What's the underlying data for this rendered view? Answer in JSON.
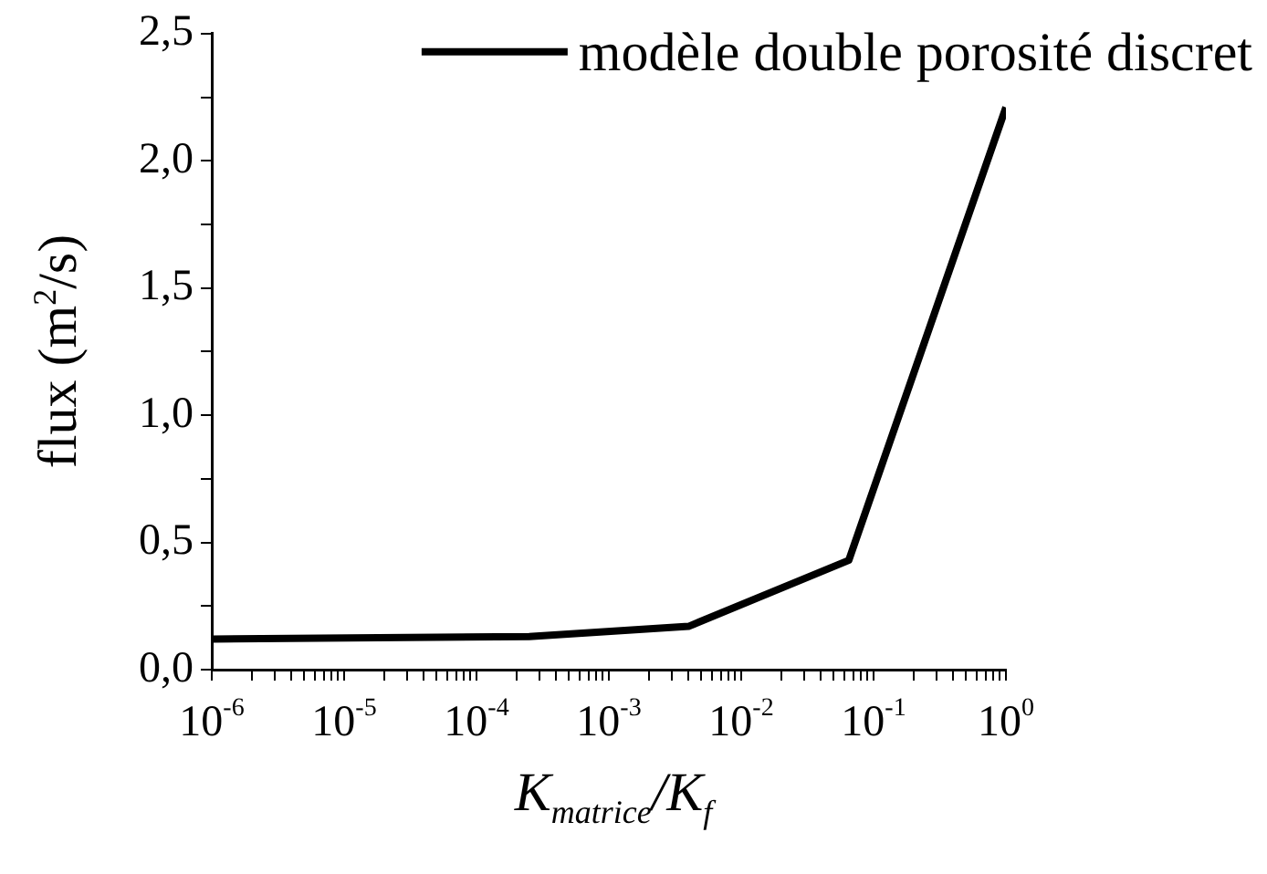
{
  "chart_data": {
    "type": "line",
    "xlabel": "K$_{matrice}$/K$_{f}$",
    "ylabel": "flux (m$^{2}$/s)",
    "log": "x",
    "legend": "top right",
    "marker": "none",
    "line_style": "solid",
    "grid": false,
    "series": [
      {
        "name": "modèle double porosité discret",
        "color": "#000000",
        "x": [
          1e-06,
          0.00025,
          0.004,
          0.065,
          1
        ],
        "values": [
          0.12,
          0.13,
          0.17,
          0.43,
          2.21
        ]
      }
    ],
    "xlim": [
      1e-06,
      1
    ],
    "ylim": [
      0,
      2.5
    ],
    "xticks": [
      {
        "value": 1e-06,
        "label": "10$^{-6}$"
      },
      {
        "value": 2e-06,
        "label": null
      },
      {
        "value": 3e-06,
        "label": null
      },
      {
        "value": 4e-06,
        "label": null
      },
      {
        "value": 5e-06,
        "label": null
      },
      {
        "value": 6e-06,
        "label": null
      },
      {
        "value": 7e-06,
        "label": null
      },
      {
        "value": 8e-06,
        "label": null
      },
      {
        "value": 9e-06,
        "label": null
      },
      {
        "value": 1e-05,
        "label": "10$^{-5}$"
      },
      {
        "value": 2e-05,
        "label": null
      },
      {
        "value": 3e-05,
        "label": null
      },
      {
        "value": 4e-05,
        "label": null
      },
      {
        "value": 5e-05,
        "label": null
      },
      {
        "value": 6e-05,
        "label": null
      },
      {
        "value": 7e-05,
        "label": null
      },
      {
        "value": 8e-05,
        "label": null
      },
      {
        "value": 9e-05,
        "label": null
      },
      {
        "value": 0.0001,
        "label": "10$^{-4}$"
      },
      {
        "value": 0.0002,
        "label": null
      },
      {
        "value": 0.0003,
        "label": null
      },
      {
        "value": 0.0004,
        "label": null
      },
      {
        "value": 0.0005,
        "label": null
      },
      {
        "value": 0.0006,
        "label": null
      },
      {
        "value": 0.0007,
        "label": null
      },
      {
        "value": 0.0008,
        "label": null
      },
      {
        "value": 0.0009,
        "label": null
      },
      {
        "value": 0.001,
        "label": "10$^{-3}$"
      },
      {
        "value": 0.002,
        "label": null
      },
      {
        "value": 0.003,
        "label": null
      },
      {
        "value": 0.004,
        "label": null
      },
      {
        "value": 0.005,
        "label": null
      },
      {
        "value": 0.006,
        "label": null
      },
      {
        "value": 0.007,
        "label": null
      },
      {
        "value": 0.008,
        "label": null
      },
      {
        "value": 0.009,
        "label": null
      },
      {
        "value": 0.01,
        "label": "10$^{-2}$"
      },
      {
        "value": 0.02,
        "label": null
      },
      {
        "value": 0.03,
        "label": null
      },
      {
        "value": 0.04,
        "label": null
      },
      {
        "value": 0.05,
        "label": null
      },
      {
        "value": 0.06,
        "label": null
      },
      {
        "value": 0.07,
        "label": null
      },
      {
        "value": 0.08,
        "label": null
      },
      {
        "value": 0.09,
        "label": null
      },
      {
        "value": 0.1,
        "label": "10$^{-1}$"
      },
      {
        "value": 0.2,
        "label": null
      },
      {
        "value": 0.3,
        "label": null
      },
      {
        "value": 0.4,
        "label": null
      },
      {
        "value": 0.5,
        "label": null
      },
      {
        "value": 0.6,
        "label": null
      },
      {
        "value": 0.7,
        "label": null
      },
      {
        "value": 0.8,
        "label": null
      },
      {
        "value": 0.9,
        "label": null
      },
      {
        "value": 1,
        "label": "10$^{0}$"
      }
    ],
    "yticks": [
      {
        "value": 0,
        "label": "0,0"
      },
      {
        "value": 0.25,
        "label": null
      },
      {
        "value": 0.5,
        "label": "0,5"
      },
      {
        "value": 0.75,
        "label": null
      },
      {
        "value": 1,
        "label": "1,0"
      },
      {
        "value": 1.25,
        "label": null
      },
      {
        "value": 1.5,
        "label": "1,5"
      },
      {
        "value": 1.75,
        "label": null
      },
      {
        "value": 2,
        "label": "2,0"
      },
      {
        "value": 2.25,
        "label": null
      },
      {
        "value": 2.5,
        "label": "2,5"
      }
    ]
  }
}
